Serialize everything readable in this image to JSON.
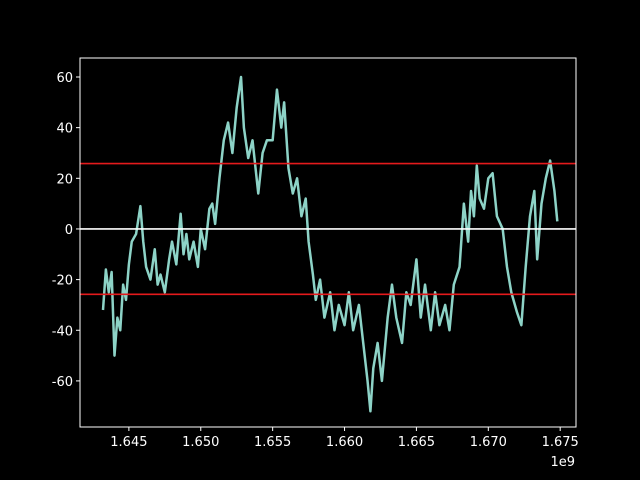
{
  "chart_data": {
    "type": "line",
    "x": [
      1643200000,
      1643400000,
      1643600000,
      1643800000,
      1644000000,
      1644200000,
      1644400000,
      1644600000,
      1644800000,
      1645000000,
      1645200000,
      1645500000,
      1645800000,
      1646000000,
      1646200000,
      1646500000,
      1646800000,
      1647000000,
      1647200000,
      1647500000,
      1647800000,
      1648000000,
      1648300000,
      1648600000,
      1648800000,
      1649000000,
      1649200000,
      1649500000,
      1649800000,
      1650000000,
      1650300000,
      1650600000,
      1650800000,
      1651000000,
      1651300000,
      1651600000,
      1651900000,
      1652200000,
      1652500000,
      1652800000,
      1653000000,
      1653300000,
      1653600000,
      1654000000,
      1654300000,
      1654600000,
      1655000000,
      1655300000,
      1655600000,
      1655800000,
      1656100000,
      1656400000,
      1656700000,
      1657000000,
      1657300000,
      1657500000,
      1657800000,
      1658000000,
      1658300000,
      1658600000,
      1659000000,
      1659300000,
      1659600000,
      1660000000,
      1660300000,
      1660600000,
      1661000000,
      1661300000,
      1661600000,
      1661800000,
      1662000000,
      1662300000,
      1662600000,
      1663000000,
      1663300000,
      1663600000,
      1664000000,
      1664300000,
      1664600000,
      1665000000,
      1665300000,
      1665600000,
      1666000000,
      1666300000,
      1666600000,
      1667000000,
      1667300000,
      1667600000,
      1668000000,
      1668300000,
      1668600000,
      1668800000,
      1669000000,
      1669200000,
      1669400000,
      1669700000,
      1670000000,
      1670300000,
      1670600000,
      1671000000,
      1671300000,
      1671600000,
      1672000000,
      1672300000,
      1672600000,
      1672900000,
      1673200000,
      1673400000,
      1673700000,
      1674000000,
      1674300000,
      1674600000,
      1674800000
    ],
    "series": [
      {
        "color": "#8dd3c7",
        "values": [
          -32,
          -16,
          -25,
          -17,
          -50,
          -35,
          -40,
          -22,
          -28,
          -14,
          -5,
          -2,
          9,
          -5,
          -15,
          -20,
          -8,
          -22,
          -18,
          -25,
          -12,
          -5,
          -14,
          6,
          -10,
          -2,
          -12,
          -5,
          -15,
          0,
          -8,
          8,
          10,
          2,
          20,
          35,
          42,
          30,
          48,
          60,
          40,
          28,
          35,
          14,
          30,
          35,
          35,
          55,
          40,
          50,
          24,
          14,
          20,
          5,
          12,
          -5,
          -18,
          -28,
          -20,
          -35,
          -25,
          -40,
          -30,
          -38,
          -25,
          -40,
          -30,
          -45,
          -60,
          -72,
          -55,
          -45,
          -60,
          -35,
          -22,
          -35,
          -45,
          -25,
          -30,
          -12,
          -35,
          -22,
          -40,
          -25,
          -38,
          -30,
          -40,
          -22,
          -15,
          10,
          -5,
          15,
          5,
          25,
          12,
          8,
          20,
          22,
          5,
          0,
          -15,
          -25,
          -33,
          -38,
          -15,
          5,
          15,
          -12,
          10,
          20,
          27,
          15,
          3
        ]
      }
    ],
    "hlines": [
      {
        "value": 25.8,
        "color": "#e41a1c"
      },
      {
        "value": 0,
        "color": "#ffffff"
      },
      {
        "value": -25.8,
        "color": "#e41a1c"
      }
    ],
    "xlim": [
      1641600000,
      1676100000
    ],
    "ylim": [
      -78.2,
      67.5
    ],
    "xticks": [
      {
        "value": 1645000000,
        "label": "1.645"
      },
      {
        "value": 1650000000,
        "label": "1.650"
      },
      {
        "value": 1655000000,
        "label": "1.655"
      },
      {
        "value": 1660000000,
        "label": "1.660"
      },
      {
        "value": 1665000000,
        "label": "1.665"
      },
      {
        "value": 1670000000,
        "label": "1.670"
      },
      {
        "value": 1675000000,
        "label": "1.675"
      }
    ],
    "yticks": [
      -60,
      -40,
      -20,
      0,
      20,
      40,
      60
    ],
    "x_offset_label": "1e9"
  }
}
